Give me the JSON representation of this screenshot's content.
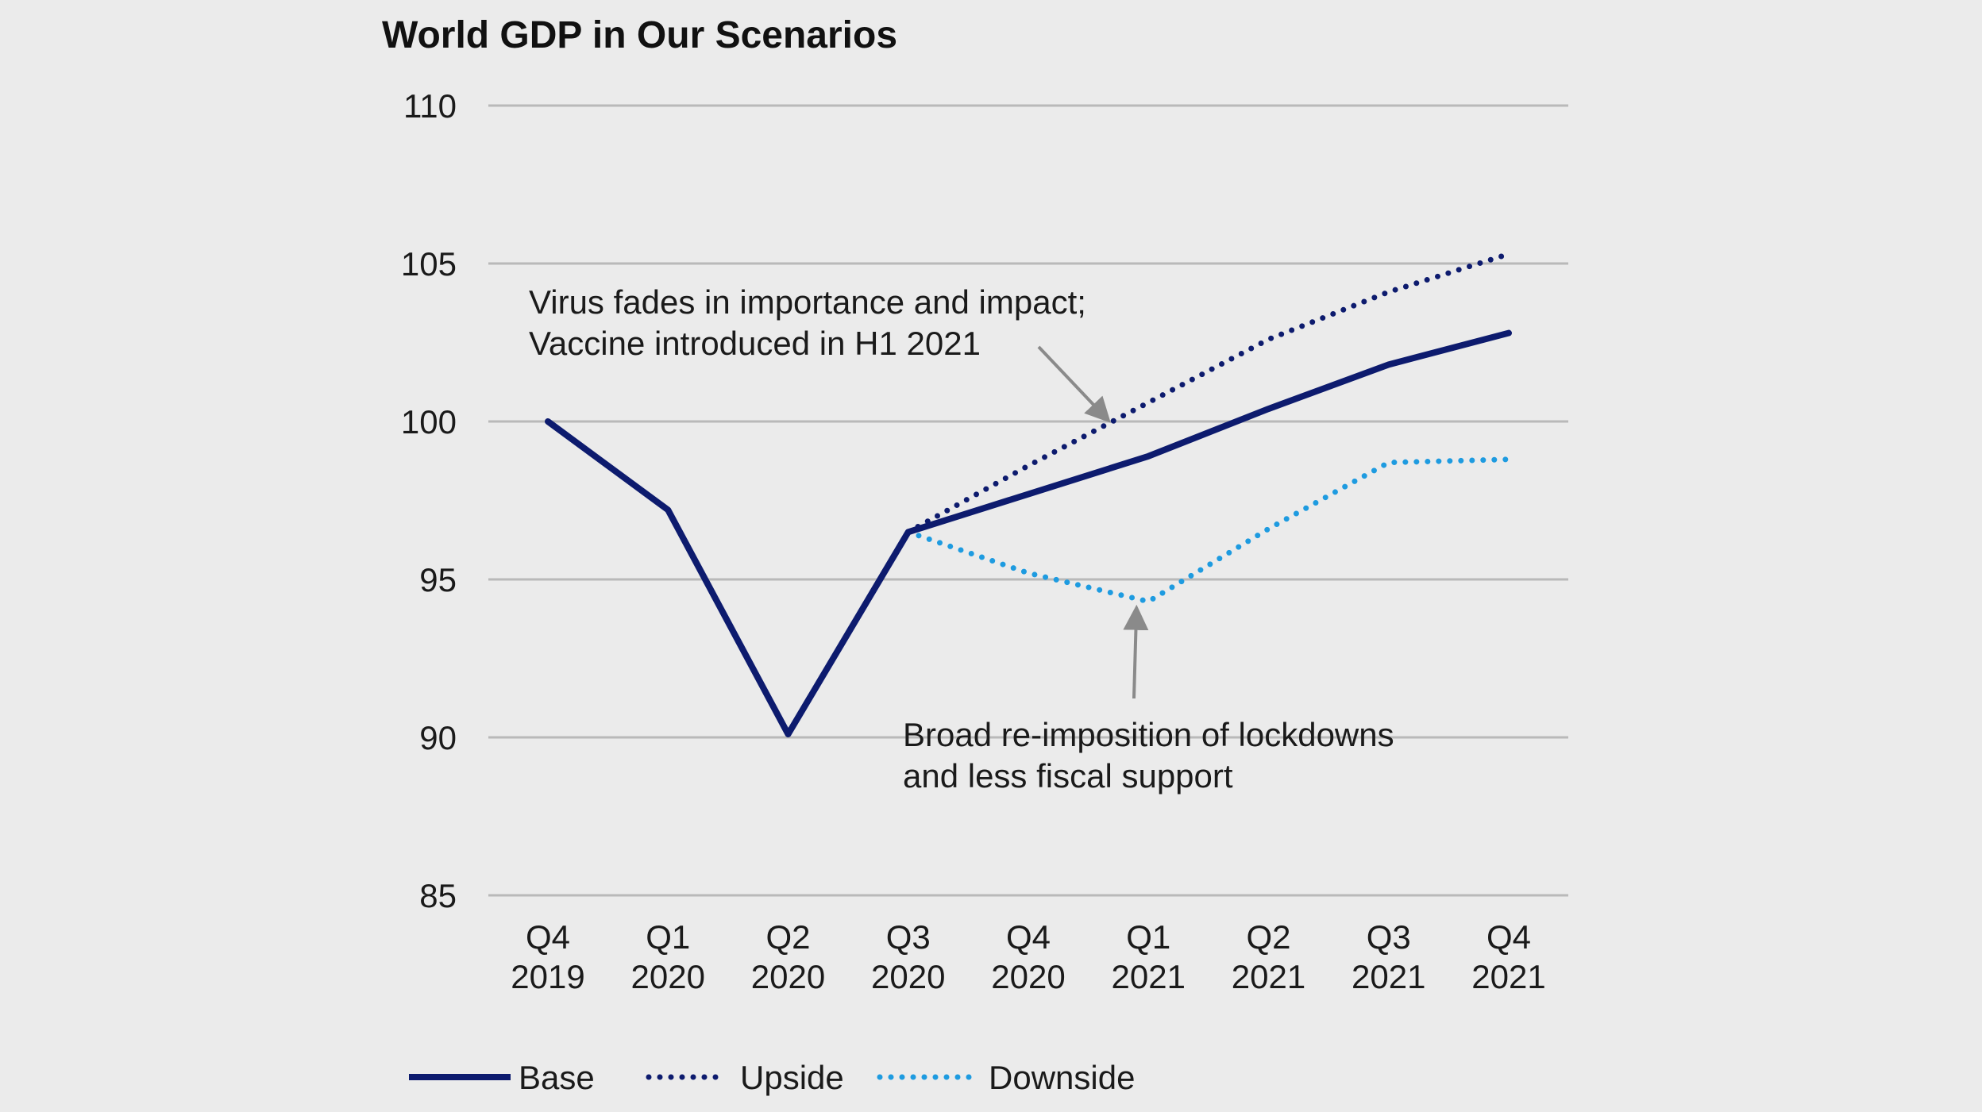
{
  "chart_data": {
    "type": "line",
    "title": "World GDP in Our Scenarios",
    "xlabel": "",
    "ylabel": "",
    "ylim": [
      85,
      110
    ],
    "yticks": [
      85,
      90,
      95,
      100,
      105,
      110
    ],
    "grid": true,
    "categories": [
      [
        "Q4",
        "2019"
      ],
      [
        "Q1",
        "2020"
      ],
      [
        "Q2",
        "2020"
      ],
      [
        "Q3",
        "2020"
      ],
      [
        "Q4",
        "2020"
      ],
      [
        "Q1",
        "2021"
      ],
      [
        "Q2",
        "2021"
      ],
      [
        "Q3",
        "2021"
      ],
      [
        "Q4",
        "2021"
      ]
    ],
    "series": [
      {
        "name": "Base",
        "style": "solid",
        "color": "#0d1b6e",
        "values": [
          100.0,
          97.2,
          90.1,
          96.5,
          97.7,
          98.9,
          100.4,
          101.8,
          102.8
        ]
      },
      {
        "name": "Upside",
        "style": "dotted",
        "color": "#0d1b6e",
        "values": [
          null,
          null,
          null,
          96.5,
          98.6,
          100.6,
          102.6,
          104.1,
          105.3
        ]
      },
      {
        "name": "Downside",
        "style": "dotted",
        "color": "#1e9be0",
        "values": [
          null,
          null,
          null,
          96.5,
          95.2,
          94.3,
          96.6,
          98.7,
          98.8
        ]
      }
    ],
    "annotations": [
      {
        "name": "upside-annotation",
        "lines": [
          "Virus fades in importance and impact;",
          "Vaccine introduced in H1 2021"
        ],
        "target_category_index": 4.65,
        "target_value": 100.1
      },
      {
        "name": "downside-annotation",
        "lines": [
          "Broad re-imposition of lockdowns",
          "and less fiscal support"
        ],
        "target_category_index": 4.9,
        "target_value": 94.0
      }
    ],
    "legend": {
      "position": "bottom-left",
      "entries": [
        "Base",
        "Upside",
        "Downside"
      ]
    }
  },
  "colors": {
    "background": "#ebebeb",
    "gridline": "#b9b9b9",
    "arrow": "#8a8a8a",
    "base": "#0d1b6e",
    "upside": "#0d1b6e",
    "downside": "#1e9be0"
  }
}
